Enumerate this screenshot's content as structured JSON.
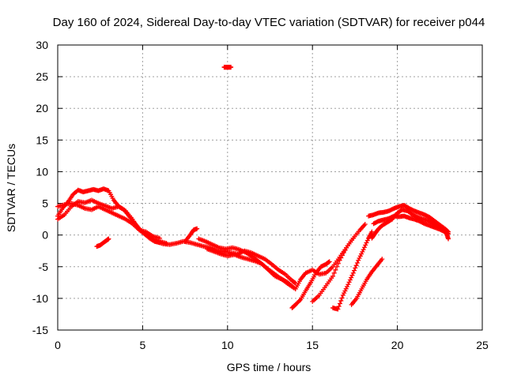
{
  "chart_data": {
    "type": "scatter",
    "title": "Day 160 of 2024, Sidereal Day-to-day VTEC variation (SDTVAR) for receiver p044",
    "xlabel": "GPS time / hours",
    "ylabel": "SDTVAR / TECUs",
    "xlim": [
      0,
      25
    ],
    "ylim": [
      -15,
      30
    ],
    "xticks": [
      "0",
      "5",
      "10",
      "15",
      "20",
      "25"
    ],
    "yticks": [
      "-15",
      "-10",
      "-5",
      "0",
      "5",
      "10",
      "15",
      "20",
      "25",
      "30"
    ],
    "grid": true,
    "marker": "+",
    "color": "#ff0000",
    "series": [
      {
        "name": "s1",
        "points": [
          [
            0.0,
            3.0
          ],
          [
            0.3,
            4.3
          ],
          [
            0.6,
            5.2
          ],
          [
            0.9,
            6.4
          ],
          [
            1.2,
            7.1
          ],
          [
            1.5,
            6.8
          ],
          [
            1.8,
            7.0
          ],
          [
            2.1,
            7.2
          ],
          [
            2.4,
            7.0
          ],
          [
            2.7,
            7.3
          ],
          [
            3.0,
            7.0
          ],
          [
            3.3,
            5.5
          ],
          [
            3.6,
            4.5
          ],
          [
            3.9,
            4.0
          ],
          [
            4.2,
            3.0
          ],
          [
            4.5,
            2.0
          ],
          [
            4.8,
            1.0
          ],
          [
            5.1,
            0.2
          ],
          [
            5.4,
            -0.5
          ],
          [
            5.7,
            -1.0
          ],
          [
            6.0,
            -1.2
          ]
        ]
      },
      {
        "name": "s2",
        "points": [
          [
            0.0,
            2.5
          ],
          [
            0.4,
            3.2
          ],
          [
            0.8,
            4.5
          ],
          [
            1.2,
            5.3
          ],
          [
            1.6,
            5.1
          ],
          [
            2.0,
            5.5
          ],
          [
            2.4,
            5.0
          ],
          [
            2.8,
            4.6
          ],
          [
            3.2,
            4.2
          ],
          [
            3.6,
            4.5
          ],
          [
            4.0,
            3.8
          ],
          [
            4.4,
            2.5
          ],
          [
            4.8,
            0.8
          ],
          [
            5.2,
            0.0
          ],
          [
            5.6,
            -0.6
          ],
          [
            6.0,
            -1.0
          ],
          [
            6.4,
            -1.3
          ]
        ]
      },
      {
        "name": "s3",
        "points": [
          [
            0.0,
            4.5
          ],
          [
            0.4,
            4.8
          ],
          [
            0.8,
            5.0
          ],
          [
            1.2,
            4.7
          ],
          [
            1.6,
            4.2
          ],
          [
            2.0,
            4.0
          ],
          [
            2.4,
            4.5
          ],
          [
            2.8,
            4.0
          ],
          [
            3.2,
            3.5
          ],
          [
            3.6,
            3.0
          ],
          [
            4.0,
            2.5
          ],
          [
            4.4,
            1.8
          ],
          [
            4.8,
            0.8
          ],
          [
            5.2,
            0.5
          ],
          [
            5.6,
            -0.2
          ],
          [
            6.0,
            -0.5
          ]
        ]
      },
      {
        "name": "s4",
        "points": [
          [
            2.3,
            -1.8
          ],
          [
            2.5,
            -1.6
          ],
          [
            2.7,
            -1.2
          ],
          [
            2.9,
            -0.8
          ],
          [
            3.0,
            -0.6
          ]
        ]
      },
      {
        "name": "s5",
        "points": [
          [
            5.8,
            -1.0
          ],
          [
            6.2,
            -1.4
          ],
          [
            6.6,
            -1.5
          ],
          [
            7.0,
            -1.3
          ],
          [
            7.4,
            -1.0
          ],
          [
            7.8,
            -1.2
          ],
          [
            8.2,
            -1.5
          ],
          [
            8.6,
            -1.8
          ],
          [
            9.0,
            -2.0
          ],
          [
            9.4,
            -2.5
          ],
          [
            9.8,
            -2.6
          ],
          [
            10.2,
            -2.8
          ],
          [
            10.6,
            -3.0
          ],
          [
            11.0,
            -2.5
          ],
          [
            11.4,
            -2.8
          ],
          [
            11.8,
            -3.3
          ],
          [
            12.2,
            -3.8
          ],
          [
            12.6,
            -4.6
          ],
          [
            13.0,
            -5.5
          ],
          [
            13.4,
            -6.2
          ],
          [
            13.8,
            -7.2
          ],
          [
            14.0,
            -7.6
          ]
        ]
      },
      {
        "name": "s6",
        "points": [
          [
            8.3,
            -0.6
          ],
          [
            8.7,
            -1.0
          ],
          [
            9.1,
            -1.5
          ],
          [
            9.5,
            -2.0
          ],
          [
            9.9,
            -2.2
          ],
          [
            10.3,
            -2.0
          ],
          [
            10.7,
            -2.3
          ],
          [
            11.1,
            -2.8
          ],
          [
            11.5,
            -3.5
          ],
          [
            11.9,
            -4.3
          ],
          [
            12.3,
            -5.2
          ],
          [
            12.7,
            -6.0
          ],
          [
            13.1,
            -6.8
          ],
          [
            13.5,
            -7.4
          ],
          [
            13.9,
            -8.3
          ]
        ]
      },
      {
        "name": "s7",
        "points": [
          [
            8.8,
            -2.2
          ],
          [
            9.2,
            -2.6
          ],
          [
            9.6,
            -3.0
          ],
          [
            10.0,
            -3.3
          ],
          [
            10.4,
            -3.1
          ],
          [
            10.8,
            -3.5
          ],
          [
            11.2,
            -3.8
          ],
          [
            11.6,
            -4.1
          ],
          [
            12.0,
            -4.5
          ],
          [
            12.4,
            -5.5
          ],
          [
            12.8,
            -6.5
          ],
          [
            13.2,
            -7.0
          ],
          [
            13.6,
            -7.8
          ],
          [
            14.0,
            -8.5
          ]
        ]
      },
      {
        "name": "s8",
        "points": [
          [
            7.5,
            -1.0
          ],
          [
            7.8,
            0.0
          ],
          [
            8.0,
            0.8
          ],
          [
            8.2,
            1.0
          ]
        ]
      },
      {
        "name": "s9",
        "points": [
          [
            9.8,
            26.5
          ],
          [
            9.9,
            26.5
          ],
          [
            10.0,
            26.5
          ],
          [
            10.1,
            26.5
          ],
          [
            10.2,
            26.5
          ]
        ]
      },
      {
        "name": "s10",
        "points": [
          [
            13.8,
            -11.5
          ],
          [
            14.0,
            -11.0
          ],
          [
            14.3,
            -10.2
          ],
          [
            14.6,
            -8.8
          ],
          [
            14.9,
            -7.5
          ],
          [
            15.2,
            -6.0
          ],
          [
            15.5,
            -5.0
          ],
          [
            15.8,
            -4.6
          ],
          [
            16.0,
            -4.2
          ]
        ]
      },
      {
        "name": "s11",
        "points": [
          [
            14.0,
            -8.5
          ],
          [
            14.3,
            -7.0
          ],
          [
            14.6,
            -6.0
          ],
          [
            15.0,
            -5.5
          ],
          [
            15.4,
            -6.2
          ],
          [
            15.8,
            -6.0
          ],
          [
            16.2,
            -5.0
          ],
          [
            16.6,
            -3.5
          ],
          [
            17.0,
            -2.0
          ],
          [
            17.4,
            -0.5
          ]
        ]
      },
      {
        "name": "s12",
        "points": [
          [
            15.0,
            -10.5
          ],
          [
            15.4,
            -9.5
          ],
          [
            15.8,
            -8.0
          ],
          [
            16.2,
            -6.5
          ],
          [
            16.6,
            -4.0
          ],
          [
            17.0,
            -2.0
          ],
          [
            17.4,
            -0.5
          ],
          [
            17.8,
            0.8
          ],
          [
            18.1,
            1.7
          ]
        ]
      },
      {
        "name": "s13",
        "points": [
          [
            16.2,
            -11.5
          ],
          [
            16.5,
            -11.7
          ],
          [
            16.8,
            -9.5
          ],
          [
            17.1,
            -7.8
          ],
          [
            17.4,
            -6.0
          ],
          [
            17.7,
            -4.0
          ],
          [
            18.0,
            -2.3
          ],
          [
            18.3,
            -0.5
          ],
          [
            18.5,
            0.5
          ]
        ]
      },
      {
        "name": "s14",
        "points": [
          [
            17.3,
            -11.0
          ],
          [
            17.6,
            -10.0
          ],
          [
            17.9,
            -8.5
          ],
          [
            18.2,
            -7.0
          ],
          [
            18.5,
            -5.8
          ],
          [
            18.8,
            -4.8
          ],
          [
            19.1,
            -3.8
          ]
        ]
      },
      {
        "name": "s15",
        "points": [
          [
            18.3,
            3.0
          ],
          [
            18.6,
            3.2
          ],
          [
            18.9,
            3.5
          ],
          [
            19.2,
            3.6
          ],
          [
            19.5,
            3.8
          ],
          [
            19.8,
            4.2
          ],
          [
            20.1,
            4.5
          ],
          [
            20.4,
            4.7
          ],
          [
            20.7,
            4.2
          ],
          [
            21.0,
            3.8
          ],
          [
            21.3,
            3.5
          ],
          [
            21.6,
            3.2
          ],
          [
            21.9,
            2.8
          ],
          [
            22.2,
            2.2
          ],
          [
            22.5,
            1.6
          ],
          [
            22.8,
            1.0
          ],
          [
            23.0,
            0.5
          ]
        ]
      },
      {
        "name": "s16",
        "points": [
          [
            18.6,
            1.8
          ],
          [
            18.9,
            2.2
          ],
          [
            19.2,
            2.4
          ],
          [
            19.5,
            2.6
          ],
          [
            19.8,
            3.0
          ],
          [
            20.1,
            2.9
          ],
          [
            20.4,
            3.0
          ],
          [
            20.7,
            2.7
          ],
          [
            21.0,
            2.5
          ],
          [
            21.3,
            2.2
          ],
          [
            21.6,
            1.8
          ],
          [
            21.9,
            1.5
          ],
          [
            22.2,
            1.2
          ],
          [
            22.5,
            0.9
          ],
          [
            22.8,
            0.5
          ],
          [
            23.0,
            0.2
          ]
        ]
      },
      {
        "name": "s17",
        "points": [
          [
            18.5,
            -0.5
          ],
          [
            18.7,
            0.3
          ],
          [
            18.9,
            1.0
          ],
          [
            19.1,
            1.5
          ],
          [
            19.4,
            2.0
          ],
          [
            19.7,
            2.5
          ],
          [
            20.0,
            3.5
          ],
          [
            20.3,
            4.0
          ],
          [
            20.6,
            3.8
          ],
          [
            20.9,
            3.2
          ],
          [
            21.2,
            2.8
          ],
          [
            21.5,
            2.5
          ],
          [
            21.8,
            2.3
          ],
          [
            22.1,
            1.8
          ],
          [
            22.4,
            1.2
          ],
          [
            22.7,
            0.8
          ],
          [
            22.9,
            0.2
          ],
          [
            23.0,
            -0.6
          ]
        ]
      }
    ]
  }
}
